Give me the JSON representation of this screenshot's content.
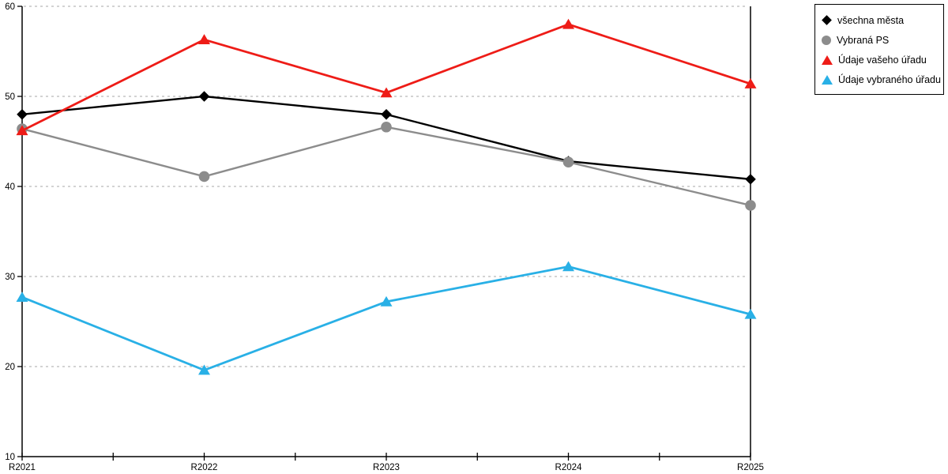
{
  "chart_data": {
    "type": "line",
    "title": "",
    "xlabel": "",
    "ylabel": "",
    "categories": [
      "R2021",
      "R2022",
      "R2023",
      "R2024",
      "R2025"
    ],
    "series": [
      {
        "name": "všechna města",
        "marker": "diamond",
        "color": "#000000",
        "line_width": 2.4,
        "values": [
          48.0,
          50.0,
          48.0,
          42.8,
          40.8
        ]
      },
      {
        "name": "Vybraná PS",
        "marker": "circle",
        "color": "#8c8c8c",
        "line_width": 2.4,
        "values": [
          46.4,
          41.1,
          46.6,
          42.7,
          37.9
        ]
      },
      {
        "name": "Údaje vašeho úřadu",
        "marker": "triangle",
        "color": "#ee1c17",
        "line_width": 2.8,
        "values": [
          46.2,
          56.3,
          50.4,
          58.0,
          51.4
        ]
      },
      {
        "name": "Údaje vybraného úřadu",
        "marker": "triangle",
        "color": "#29b0e6",
        "line_width": 2.8,
        "values": [
          27.7,
          19.6,
          27.2,
          31.1,
          25.8
        ]
      }
    ],
    "ylim": [
      10,
      60
    ],
    "yticks": [
      10,
      20,
      30,
      40,
      50,
      60
    ],
    "grid": "horizontal-dashed",
    "grid_color": "#b9b9b9",
    "axis_color": "#000000",
    "legend_position": "top-right-outside"
  }
}
